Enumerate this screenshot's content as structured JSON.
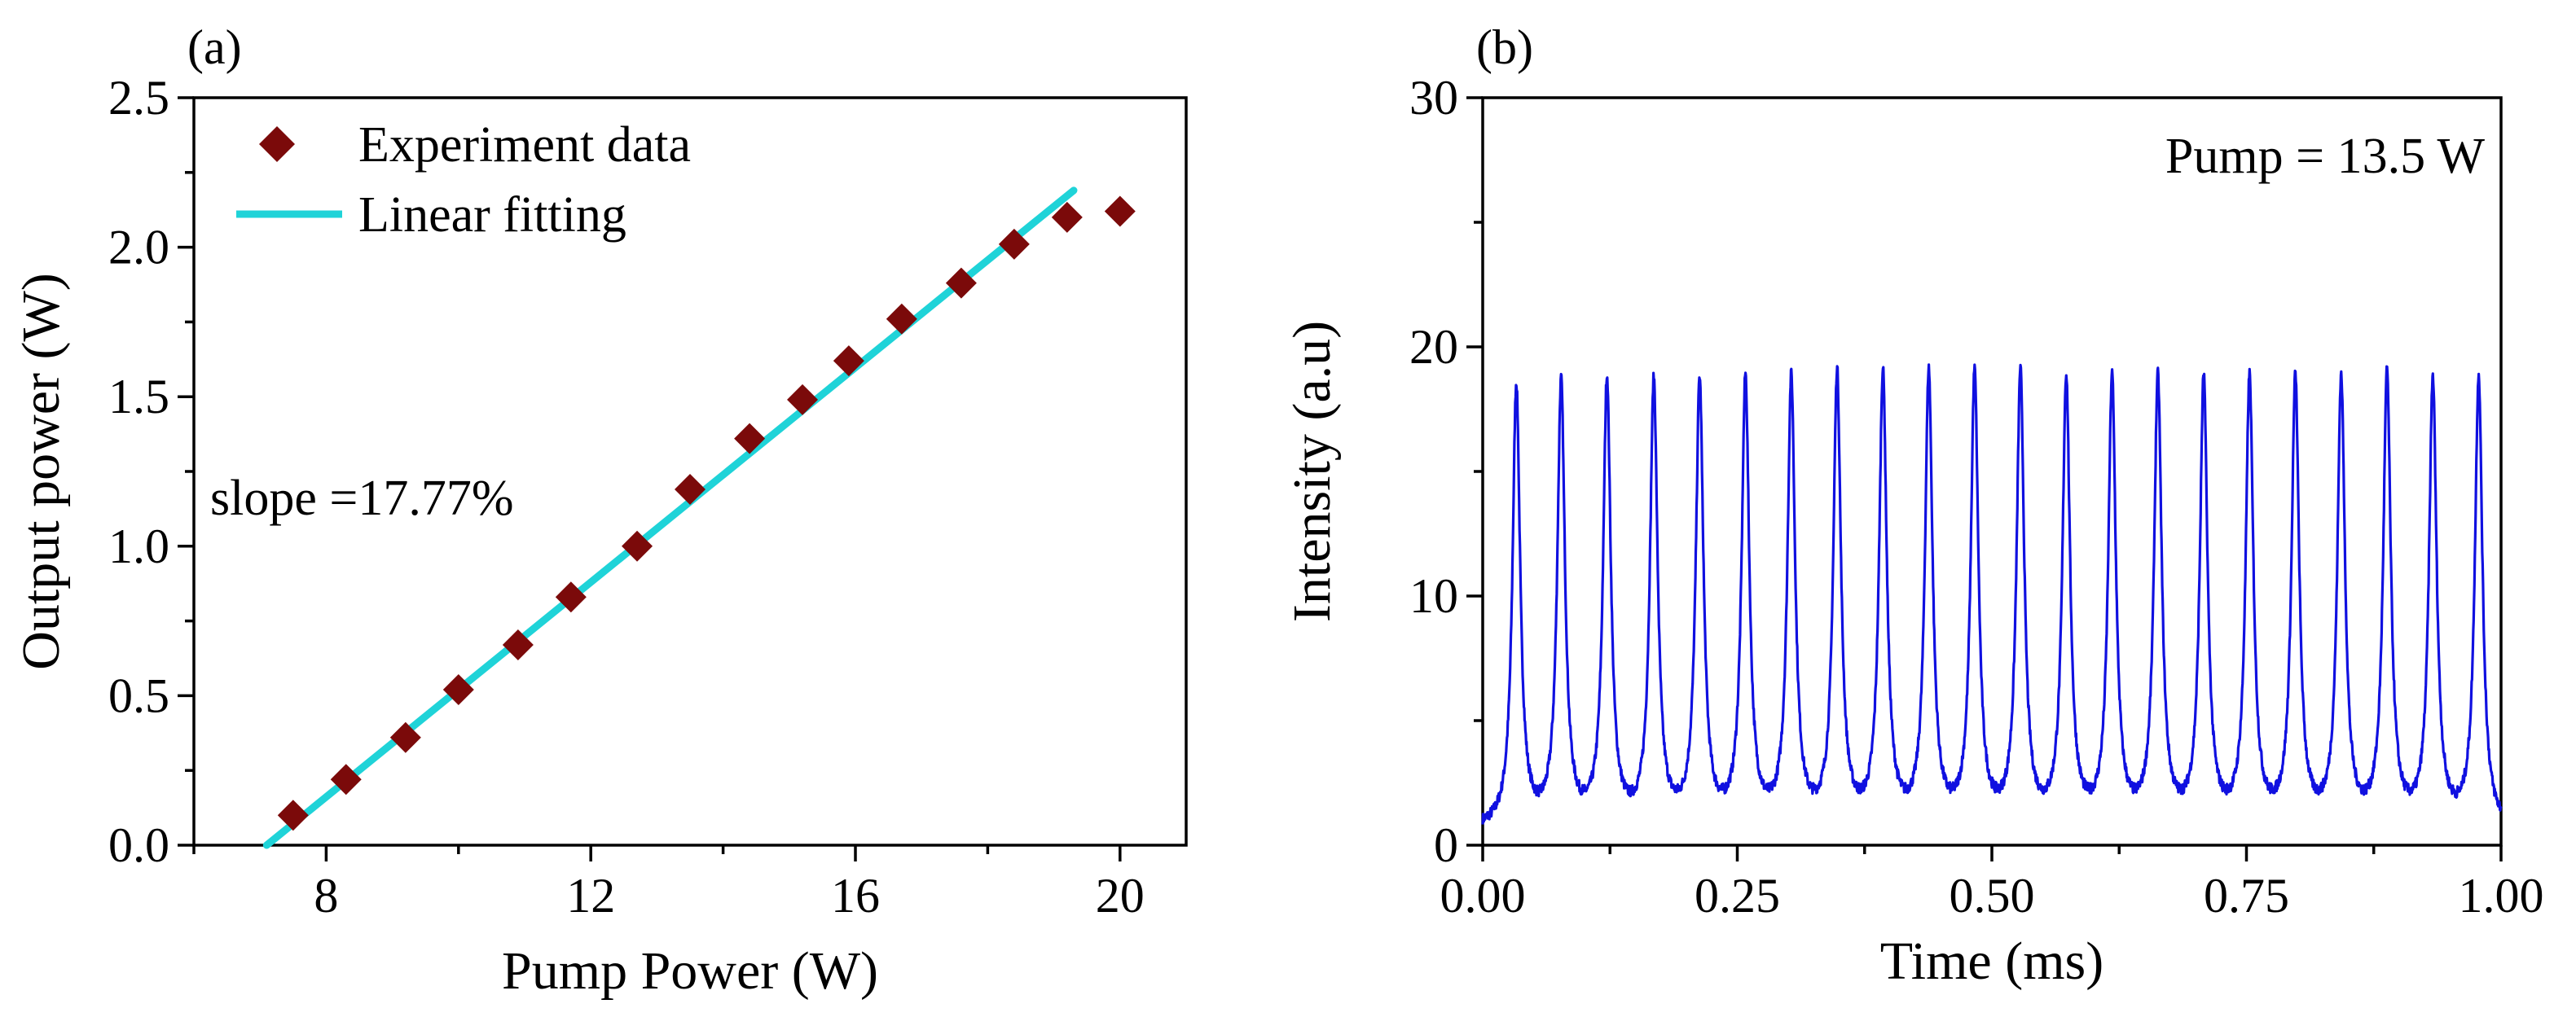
{
  "chart_data": [
    {
      "panel": "(a)",
      "type": "scatter",
      "xlabel": "Pump Power (W)",
      "ylabel": "Output power (W)",
      "xlim": [
        6,
        21
      ],
      "ylim": [
        0,
        2.5
      ],
      "xticks": [
        "8",
        "12",
        "16",
        "20"
      ],
      "xtick_values": [
        8,
        12,
        16,
        20
      ],
      "yticks": [
        "0.0",
        "0.5",
        "1.0",
        "1.5",
        "2.0",
        "2.5"
      ],
      "ytick_values": [
        0,
        0.5,
        1.0,
        1.5,
        2.0,
        2.5
      ],
      "legend_placement": "top-left",
      "annotation": "slope =17.77%",
      "series": [
        {
          "name": "Experiment data",
          "kind": "scatter",
          "marker": "diamond",
          "color": "#7B0A0A",
          "x": [
            7.5,
            8.3,
            9.2,
            10.0,
            10.9,
            11.7,
            12.7,
            13.5,
            14.4,
            15.2,
            15.9,
            16.7,
            17.6,
            18.4,
            19.2,
            20.0
          ],
          "y": [
            0.1,
            0.22,
            0.36,
            0.52,
            0.67,
            0.83,
            1.0,
            1.19,
            1.36,
            1.49,
            1.62,
            1.76,
            1.88,
            2.01,
            2.1,
            2.12
          ]
        },
        {
          "name": "Linear fitting",
          "kind": "line",
          "color": "#1FD3D8",
          "x": [
            7.1,
            19.3
          ],
          "y": [
            0.0,
            2.19
          ]
        }
      ]
    },
    {
      "panel": "(b)",
      "type": "line",
      "xlabel": "Time (ms)",
      "ylabel": "Intensity (a.u)",
      "xlim": [
        0,
        1
      ],
      "ylim": [
        0,
        30
      ],
      "xticks": [
        "0.00",
        "0.25",
        "0.50",
        "0.75",
        "1.00"
      ],
      "xtick_values": [
        0,
        0.25,
        0.5,
        0.75,
        1.0
      ],
      "yticks": [
        "0",
        "10",
        "20",
        "30"
      ],
      "ytick_values": [
        0,
        10,
        20,
        30
      ],
      "annotation": "Pump = 13.5 W",
      "baseline": 0.6,
      "pulse_half_width_ms": 0.0045,
      "series": [
        {
          "kind": "pulse-train",
          "color": "#1010E0",
          "peak_times": [
            0.033,
            0.077,
            0.122,
            0.168,
            0.213,
            0.258,
            0.303,
            0.348,
            0.393,
            0.438,
            0.483,
            0.528,
            0.573,
            0.618,
            0.663,
            0.708,
            0.753,
            0.798,
            0.843,
            0.888,
            0.933,
            0.978
          ],
          "peak_values": [
            18.3,
            18.3,
            18.4,
            18.3,
            18.3,
            18.4,
            18.4,
            18.6,
            18.6,
            18.6,
            18.6,
            18.6,
            18.4,
            18.4,
            18.4,
            18.4,
            18.4,
            18.4,
            18.4,
            18.6,
            18.4,
            18.6
          ]
        }
      ]
    }
  ]
}
